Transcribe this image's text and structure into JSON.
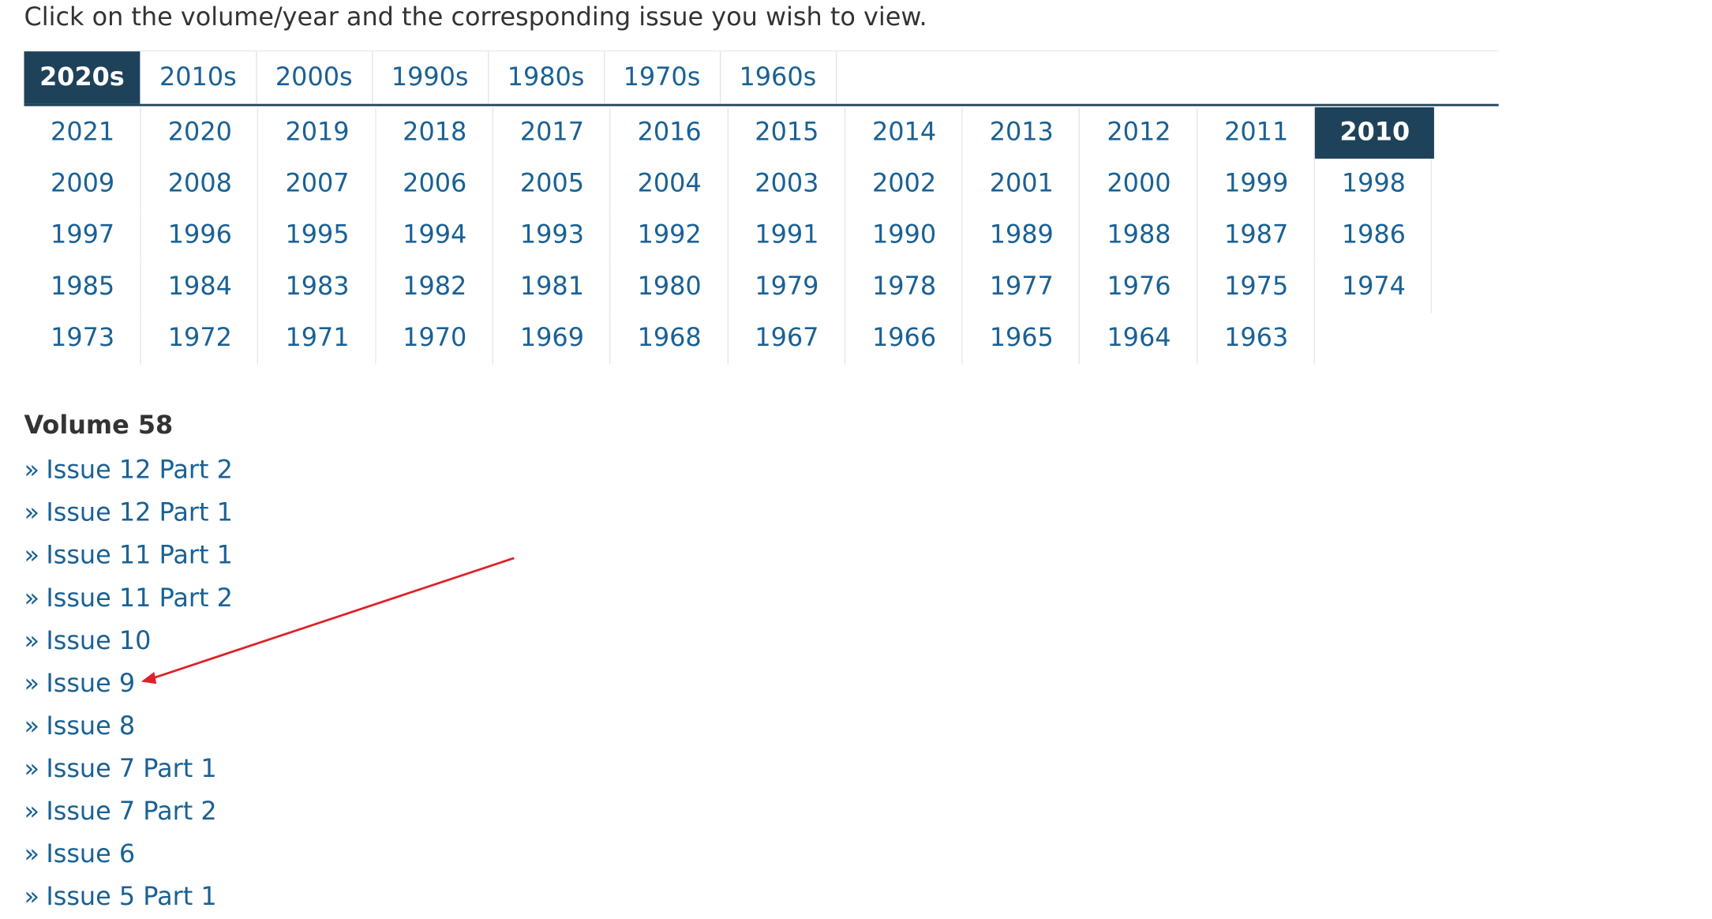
{
  "instruction": "Click on the volume/year and the corresponding issue you wish to view.",
  "decades": [
    "2020s",
    "2010s",
    "2000s",
    "1990s",
    "1980s",
    "1970s",
    "1960s"
  ],
  "active_decade": "2020s",
  "year_rows": [
    [
      "2021",
      "2020",
      "2019",
      "2018",
      "2017",
      "2016",
      "2015",
      "2014",
      "2013",
      "2012",
      "2011",
      "2010"
    ],
    [
      "2009",
      "2008",
      "2007",
      "2006",
      "2005",
      "2004",
      "2003",
      "2002",
      "2001",
      "2000",
      "1999",
      "1998"
    ],
    [
      "1997",
      "1996",
      "1995",
      "1994",
      "1993",
      "1992",
      "1991",
      "1990",
      "1989",
      "1988",
      "1987",
      "1986"
    ],
    [
      "1985",
      "1984",
      "1983",
      "1982",
      "1981",
      "1980",
      "1979",
      "1978",
      "1977",
      "1976",
      "1975",
      "1974"
    ],
    [
      "1973",
      "1972",
      "1971",
      "1970",
      "1969",
      "1968",
      "1967",
      "1966",
      "1965",
      "1964",
      "1963"
    ]
  ],
  "active_year": "2010",
  "volume_title": "Volume 58",
  "issue_marker": "»",
  "issues": [
    "Issue 12 Part 2",
    "Issue 12 Part 1",
    "Issue 11 Part 1",
    "Issue 11 Part 2",
    "Issue 10",
    "Issue 9",
    "Issue 8",
    "Issue 7 Part 1",
    "Issue 7 Part 2",
    "Issue 6",
    "Issue 5 Part 1"
  ],
  "colors": {
    "accent": "#1e4259",
    "link": "#1a6194",
    "text": "#333333",
    "annotation": "#e0202a"
  },
  "annotation_icon": "red-arrow-icon"
}
